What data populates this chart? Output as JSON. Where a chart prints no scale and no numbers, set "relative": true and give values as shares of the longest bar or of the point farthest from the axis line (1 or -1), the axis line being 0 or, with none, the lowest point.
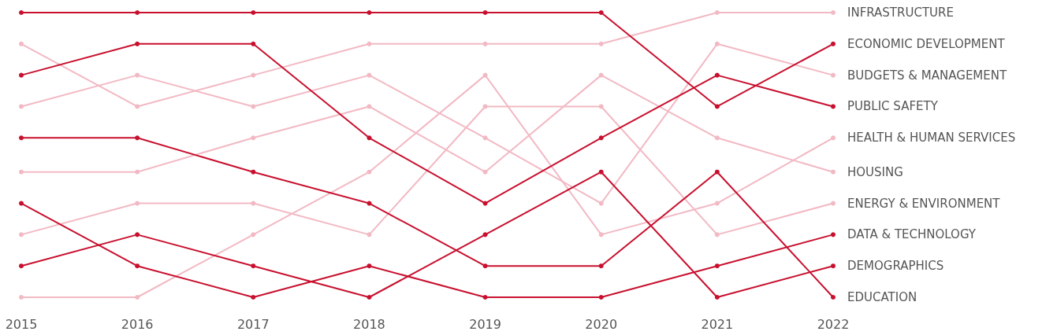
{
  "chart_data": {
    "type": "line",
    "relative": true,
    "categories": [
      "2015",
      "2016",
      "2017",
      "2018",
      "2019",
      "2020",
      "2021",
      "2022"
    ],
    "legend": false,
    "grid": false,
    "marker": "circle",
    "line_style": "solid",
    "tick_labels": "x",
    "series": [
      {
        "name": "INFRASTRUCTURE",
        "color": "#f2b9c4",
        "values": [
          0.89,
          0.67,
          0.78,
          0.89,
          0.89,
          0.89,
          1,
          1
        ]
      },
      {
        "name": "ECONOMIC DEVELOPMENT",
        "color": "#c8102e",
        "values": [
          1,
          1,
          1,
          1,
          1,
          1,
          0.67,
          0.89
        ]
      },
      {
        "name": "BUDGETS & MANAGEMENT",
        "color": "#f2b9c4",
        "values": [
          0.67,
          0.78,
          0.67,
          0.78,
          0.56,
          0.33,
          0.89,
          0.78
        ]
      },
      {
        "name": "PUBLIC SAFETY",
        "color": "#c8102e",
        "values": [
          0.78,
          0.89,
          0.89,
          0.56,
          0.33,
          0.56,
          0.78,
          0.67
        ]
      },
      {
        "name": "HEALTH & HUMAN SERVICES",
        "color": "#f2b9c4",
        "values": [
          0,
          0,
          0.22,
          0.44,
          0.78,
          0.22,
          0.33,
          0.56
        ]
      },
      {
        "name": "HOUSING",
        "color": "#f2b9c4",
        "values": [
          0.44,
          0.44,
          0.56,
          0.67,
          0.44,
          0.78,
          0.56,
          0.44
        ]
      },
      {
        "name": "ENERGY & ENVIRONMENT",
        "color": "#f2b9c4",
        "values": [
          0.22,
          0.33,
          0.33,
          0.22,
          0.67,
          0.67,
          0.22,
          0.33
        ]
      },
      {
        "name": "DATA & TECHNOLOGY",
        "color": "#c8102e",
        "values": [
          0.33,
          0.11,
          0,
          0.11,
          0,
          0,
          0.11,
          0.22
        ]
      },
      {
        "name": "DEMOGRAPHICS",
        "color": "#c8102e",
        "values": [
          0.11,
          0.22,
          0.11,
          0,
          0.22,
          0.44,
          0,
          0.11
        ]
      },
      {
        "name": "EDUCATION",
        "color": "#c8102e",
        "values": [
          0.56,
          0.56,
          0.44,
          0.33,
          0.11,
          0.11,
          0.44,
          0
        ]
      }
    ]
  }
}
